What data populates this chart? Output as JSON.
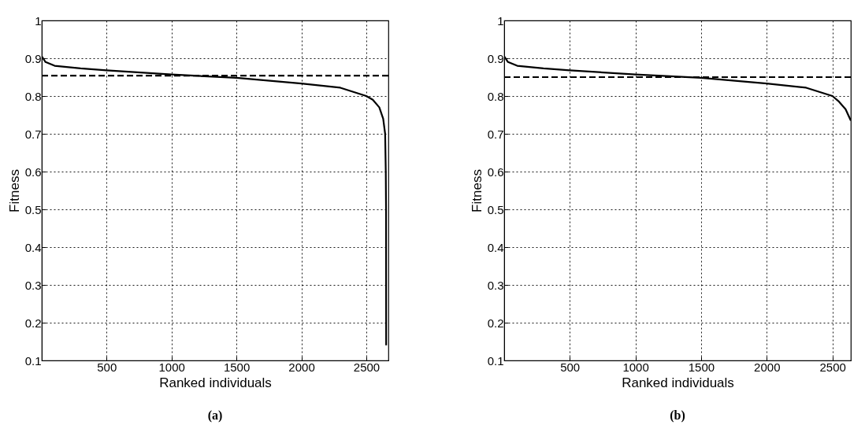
{
  "chart_data": [
    {
      "type": "line",
      "title": "(a)",
      "xlabel": "Ranked individuals",
      "ylabel": "Fitness",
      "xlim": [
        1,
        2670
      ],
      "xticks": [
        500,
        1000,
        1500,
        2000,
        2500
      ],
      "ylim": [
        0.1,
        1
      ],
      "yticks": [
        0.1,
        0.2,
        0.3,
        0.4,
        0.5,
        0.6,
        0.7,
        0.8,
        0.9,
        1
      ],
      "grid": true,
      "line_style": "solid",
      "series": [
        {
          "color": "#000000",
          "x": [
            1,
            30,
            100,
            300,
            500,
            1000,
            1500,
            2000,
            2300,
            2500,
            2550,
            2600,
            2630,
            2645,
            2650,
            2652,
            2653
          ],
          "values": [
            0.905,
            0.89,
            0.88,
            0.873,
            0.868,
            0.857,
            0.848,
            0.833,
            0.822,
            0.8,
            0.79,
            0.77,
            0.74,
            0.7,
            0.6,
            0.5,
            0.14
          ]
        }
      ],
      "ref_lines": [
        {
          "axis": "y",
          "value": 0.854,
          "line_style": "dashed",
          "color": "#000000"
        }
      ]
    },
    {
      "type": "line",
      "title": "(b)",
      "xlabel": "Ranked individuals",
      "ylabel": "Fitness",
      "xlim": [
        1,
        2640
      ],
      "xticks": [
        500,
        1000,
        1500,
        2000,
        2500
      ],
      "ylim": [
        0.1,
        1
      ],
      "yticks": [
        0.1,
        0.2,
        0.3,
        0.4,
        0.5,
        0.6,
        0.7,
        0.8,
        0.9,
        1
      ],
      "grid": true,
      "line_style": "solid",
      "series": [
        {
          "color": "#000000",
          "x": [
            1,
            30,
            100,
            300,
            500,
            1000,
            1500,
            2000,
            2300,
            2500,
            2550,
            2600,
            2640
          ],
          "values": [
            0.905,
            0.89,
            0.88,
            0.873,
            0.868,
            0.857,
            0.848,
            0.833,
            0.822,
            0.8,
            0.785,
            0.765,
            0.735
          ]
        }
      ],
      "ref_lines": [
        {
          "axis": "y",
          "value": 0.85,
          "line_style": "dashed",
          "color": "#000000"
        }
      ]
    }
  ]
}
